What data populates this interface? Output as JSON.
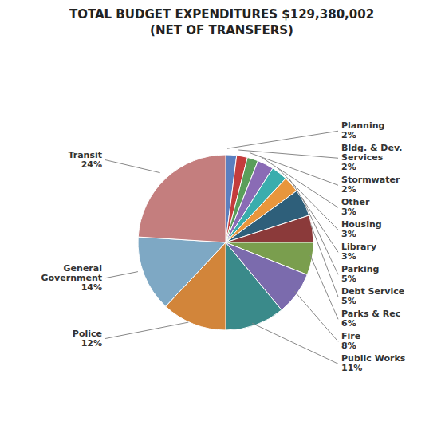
{
  "chart_data": {
    "type": "pie",
    "title": "TOTAL BUDGET EXPENDITURES $129,380,002\n(NET OF TRANSFERS)",
    "categories": [
      "Planning",
      "Bldg. & Dev.\nServices",
      "Stormwater",
      "Other",
      "Housing",
      "Library",
      "Parking",
      "Debt Service",
      "Parks & Rec",
      "Fire",
      "Public Works",
      "Police",
      "General\nGovernment",
      "Transit"
    ],
    "values": [
      2,
      2,
      2,
      3,
      3,
      3,
      5,
      5,
      6,
      8,
      11,
      12,
      14,
      24
    ],
    "value_labels": [
      "2%",
      "2%",
      "2%",
      "3%",
      "3%",
      "3%",
      "5%",
      "5%",
      "6%",
      "8%",
      "11%",
      "12%",
      "14%",
      "24%"
    ],
    "colors": [
      "#5B7FBF",
      "#C43C3C",
      "#5A9E5A",
      "#8A6BB5",
      "#3AADAD",
      "#E8963C",
      "#2E5F7A",
      "#8B3A3A",
      "#7A9E4E",
      "#7B6BAD",
      "#3A8A8A",
      "#D2853A",
      "#7EA8C4",
      "#C47E7E"
    ],
    "data_labels": true
  }
}
